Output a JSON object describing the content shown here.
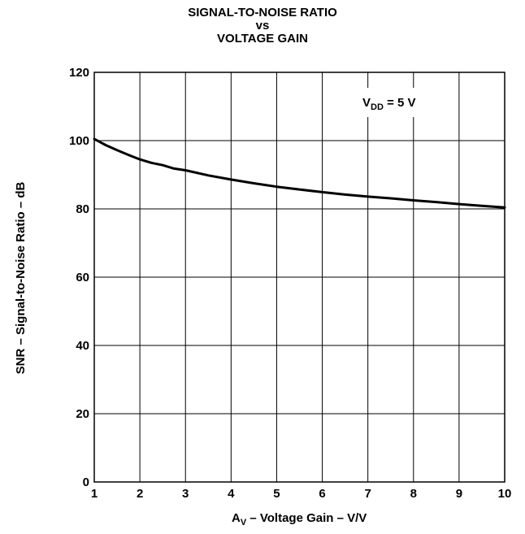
{
  "chart_data": {
    "type": "line",
    "title_lines": [
      "SIGNAL-TO-NOISE RATIO",
      "vs",
      "VOLTAGE GAIN"
    ],
    "xlabel": {
      "main": "A",
      "sub": "V",
      "rest": " – Voltage Gain – V/V"
    },
    "ylabel": "SNR – Signal-to-Noise Ratio – dB",
    "xlim": [
      1,
      10
    ],
    "ylim": [
      0,
      120
    ],
    "x_ticks": [
      "1",
      "2",
      "3",
      "4",
      "5",
      "6",
      "7",
      "8",
      "9",
      "10"
    ],
    "y_ticks": [
      "0",
      "20",
      "40",
      "60",
      "80",
      "100",
      "120"
    ],
    "grid": true,
    "annotation": {
      "main": "V",
      "sub": "DD",
      "rest": " = 5 V"
    },
    "series": [
      {
        "x": [
          1,
          1.25,
          1.5,
          1.75,
          2,
          2.25,
          2.5,
          2.75,
          3,
          3.5,
          4,
          4.5,
          5,
          5.5,
          6,
          6.5,
          7,
          7.5,
          8,
          8.5,
          9,
          9.5,
          10
        ],
        "y": [
          100.5,
          98.7,
          97.2,
          95.8,
          94.5,
          93.5,
          92.8,
          91.8,
          91.3,
          89.8,
          88.6,
          87.5,
          86.5,
          85.7,
          84.9,
          84.2,
          83.6,
          83.1,
          82.5,
          82.0,
          81.4,
          80.9,
          80.4
        ]
      }
    ]
  }
}
